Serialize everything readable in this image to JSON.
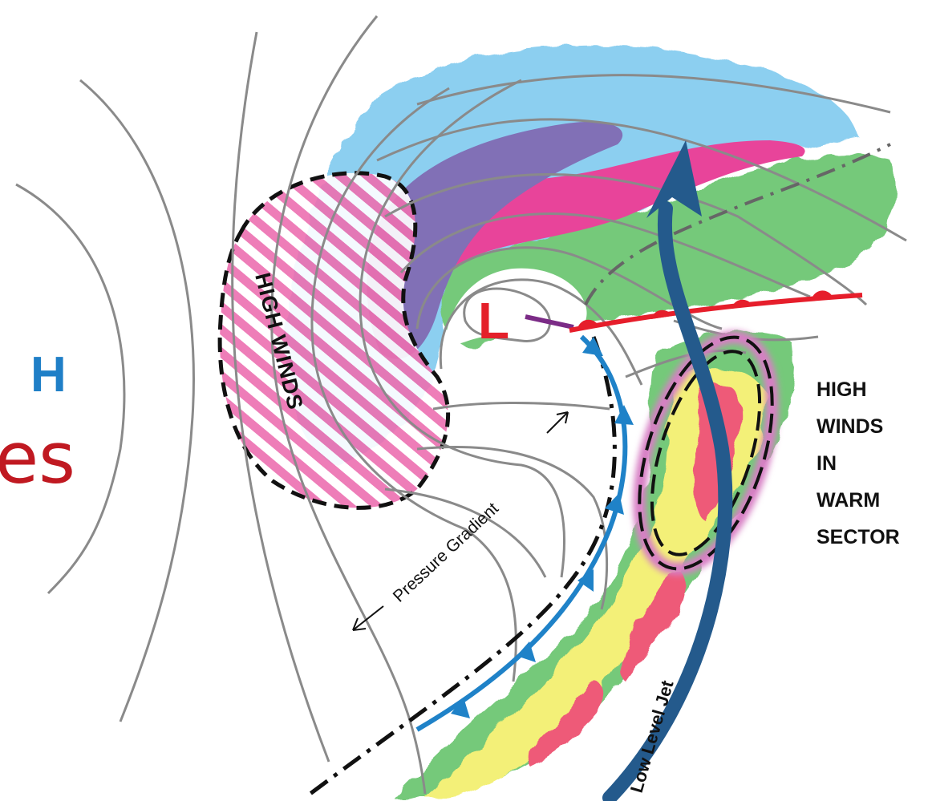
{
  "labels": {
    "high_pressure": "H",
    "low_pressure": "L",
    "slide_title_fragment": "es",
    "high_winds_cold_side": "HIGH WINDS",
    "warm_sector": [
      "HIGH",
      "WINDS",
      "IN",
      "WARM",
      "SECTOR"
    ],
    "pressure_gradient": "Pressure Gradient",
    "low_level_jet": "Low Level Jet"
  },
  "colors": {
    "high_pressure_blue": "#1f7fc7",
    "low_pressure_red": "#e4202a",
    "title_red": "#c01921",
    "isobar_gray": "#8a8a8a",
    "light_blue_precip": "#8ccff0",
    "purple_precip": "#8170b6",
    "pink_precip": "#e8449a",
    "green_precip": "#74c97a",
    "yellow_precip": "#f3f078",
    "red_precip": "#ee5a78",
    "jet_navy": "#245a8c",
    "cold_front_blue": "#1f82c8",
    "warm_front_red": "#e61e2b",
    "occluded_purple": "#7b2b86"
  }
}
